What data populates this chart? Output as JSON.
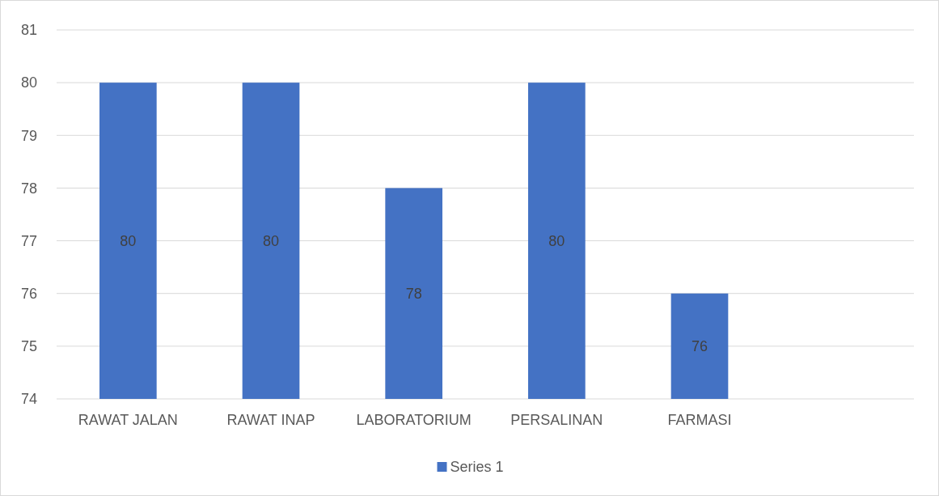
{
  "chart_data": {
    "type": "bar",
    "categories": [
      "RAWAT JALAN",
      "RAWAT INAP",
      "LABORATORIUM",
      "PERSALINAN",
      "FARMASI",
      null
    ],
    "series": [
      {
        "name": "Series 1",
        "color": "#4472c4",
        "values": [
          80,
          80,
          78,
          80,
          76,
          null
        ]
      }
    ],
    "ylim": [
      74,
      81
    ],
    "yticks": [
      74,
      75,
      76,
      77,
      78,
      79,
      80,
      81
    ],
    "grid": "y",
    "legend": "bottom",
    "data_labels": true
  }
}
